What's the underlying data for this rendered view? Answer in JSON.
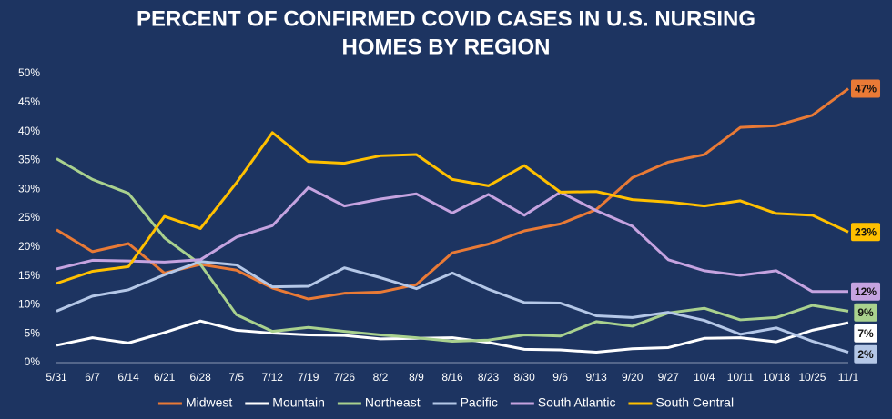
{
  "chart_data": {
    "type": "line",
    "title": [
      "PERCENT OF CONFIRMED COVID CASES IN U.S. NURSING",
      "HOMES BY REGION"
    ],
    "categories": [
      "5/31",
      "6/7",
      "6/14",
      "6/21",
      "6/28",
      "7/5",
      "7/12",
      "7/19",
      "7/26",
      "8/2",
      "8/9",
      "8/16",
      "8/23",
      "8/30",
      "9/6",
      "9/13",
      "9/20",
      "9/27",
      "10/4",
      "10/11",
      "10/18",
      "10/25",
      "11/1"
    ],
    "series": [
      {
        "name": "Midwest",
        "color": "#e97a36",
        "values": [
          23,
          19.2,
          20.6,
          15.5,
          17,
          16,
          12.9,
          11,
          12,
          12.2,
          13.5,
          19,
          20.5,
          22.8,
          24,
          26.5,
          32,
          34.7,
          36,
          40.7,
          41,
          42.8,
          47.4
        ],
        "value_labels": [
          null,
          null,
          null,
          null,
          null,
          null,
          null,
          null,
          null,
          null,
          null,
          null,
          null,
          null,
          null,
          null,
          null,
          null,
          null,
          null,
          null,
          null,
          "47%"
        ]
      },
      {
        "name": "Mountain",
        "color": "#ffffff",
        "values": [
          3,
          4.3,
          3.4,
          5.2,
          7.2,
          5.6,
          5.1,
          4.8,
          4.7,
          4.1,
          4.2,
          4.3,
          3.5,
          2.3,
          2.2,
          1.8,
          2.4,
          2.6,
          4.2,
          4.3,
          3.6,
          5.6,
          6.9
        ],
        "value_labels": [
          null,
          null,
          null,
          null,
          null,
          null,
          null,
          null,
          null,
          null,
          null,
          null,
          null,
          null,
          null,
          null,
          null,
          null,
          null,
          null,
          null,
          null,
          "7%"
        ]
      },
      {
        "name": "Northeast",
        "color": "#a9d18e",
        "values": [
          35.3,
          31.7,
          29.3,
          21.6,
          17,
          8.3,
          5.4,
          6.1,
          5.4,
          4.8,
          4.3,
          3.7,
          3.9,
          4.8,
          4.6,
          7.1,
          6.3,
          8.6,
          9.4,
          7.4,
          7.8,
          9.9,
          8.9
        ],
        "value_labels": [
          null,
          null,
          null,
          null,
          null,
          null,
          null,
          null,
          null,
          null,
          null,
          null,
          null,
          null,
          null,
          null,
          null,
          null,
          null,
          null,
          null,
          null,
          "9%"
        ]
      },
      {
        "name": "Pacific",
        "color": "#b4c7e7",
        "values": [
          8.9,
          11.5,
          12.6,
          15.2,
          17.5,
          16.9,
          13.1,
          13.2,
          16.4,
          14.7,
          12.8,
          15.5,
          12.7,
          10.4,
          10.3,
          8.1,
          7.8,
          8.7,
          7.3,
          4.9,
          6,
          3.7,
          1.8
        ],
        "value_labels": [
          null,
          null,
          null,
          null,
          null,
          null,
          null,
          null,
          null,
          null,
          null,
          null,
          null,
          null,
          null,
          null,
          null,
          null,
          null,
          null,
          null,
          null,
          "2%"
        ]
      },
      {
        "name": "South Atlantic",
        "color": "#c5a3e0",
        "values": [
          16.2,
          17.7,
          17.6,
          17.4,
          17.8,
          21.7,
          23.7,
          30.3,
          27.1,
          28.3,
          29.2,
          25.9,
          29.1,
          25.5,
          29.5,
          26.3,
          23.6,
          17.8,
          15.9,
          15.1,
          15.9,
          12.3,
          12.3
        ],
        "value_labels": [
          null,
          null,
          null,
          null,
          null,
          null,
          null,
          null,
          null,
          null,
          null,
          null,
          null,
          null,
          null,
          null,
          null,
          null,
          null,
          null,
          null,
          null,
          "12%"
        ]
      },
      {
        "name": "South Central",
        "color": "#ffc000",
        "values": [
          13.7,
          15.8,
          16.6,
          25.3,
          23.2,
          31.1,
          39.8,
          34.8,
          34.5,
          35.8,
          36,
          31.7,
          30.6,
          34.1,
          29.5,
          29.6,
          28.2,
          27.8,
          27.1,
          28,
          25.8,
          25.5,
          22.6
        ],
        "value_labels": [
          null,
          null,
          null,
          null,
          null,
          null,
          null,
          null,
          null,
          null,
          null,
          null,
          null,
          null,
          null,
          null,
          null,
          null,
          null,
          null,
          null,
          null,
          "23%"
        ]
      }
    ],
    "ylim": [
      0,
      50
    ],
    "yticks": [
      {
        "value": 0,
        "label": "0%"
      },
      {
        "value": 5,
        "label": "5%"
      },
      {
        "value": 10,
        "label": "10%"
      },
      {
        "value": 15,
        "label": "15%"
      },
      {
        "value": 20,
        "label": "20%"
      },
      {
        "value": 25,
        "label": "25%"
      },
      {
        "value": 30,
        "label": "30%"
      },
      {
        "value": 35,
        "label": "35%"
      },
      {
        "value": 40,
        "label": "40%"
      },
      {
        "value": 45,
        "label": "45%"
      },
      {
        "value": 50,
        "label": "50%"
      }
    ],
    "grid": false,
    "legend": "bottom"
  }
}
